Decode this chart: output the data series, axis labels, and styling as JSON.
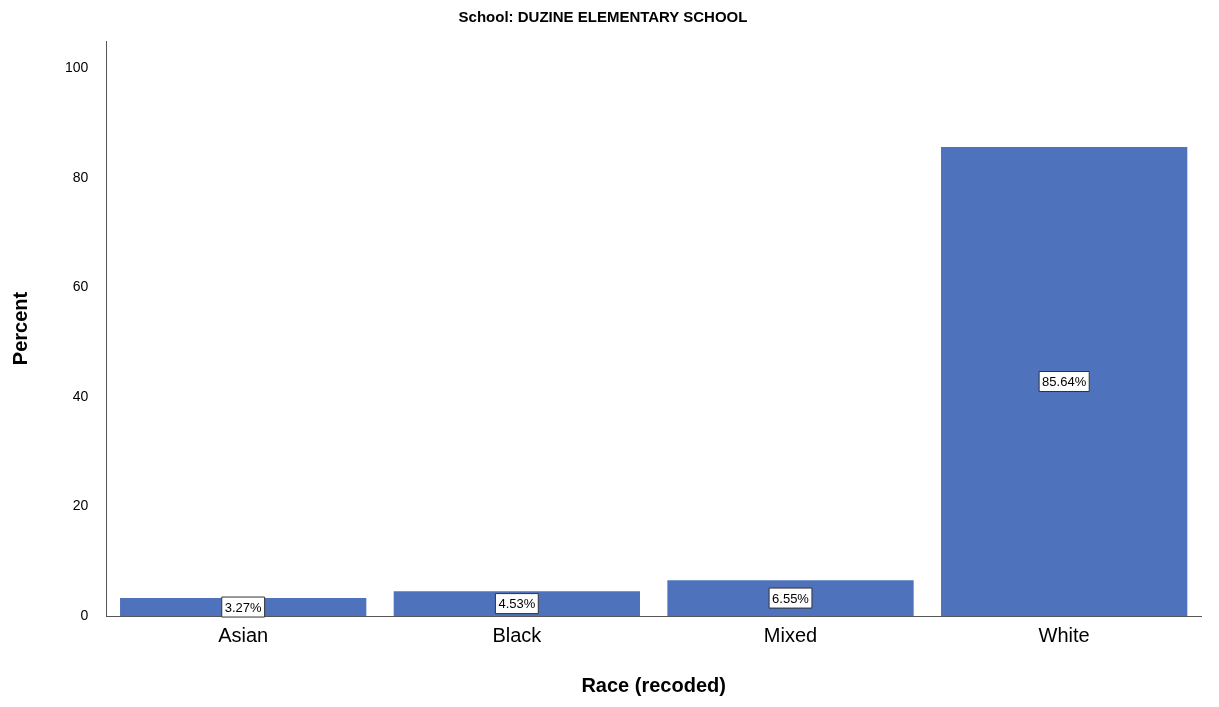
{
  "chart_data": {
    "type": "bar",
    "title": "School: DUZINE ELEMENTARY SCHOOL",
    "xlabel": "Race (recoded)",
    "ylabel": "Percent",
    "categories": [
      "Asian",
      "Black",
      "Mixed",
      "White"
    ],
    "values": [
      3.27,
      4.53,
      6.55,
      85.64
    ],
    "value_labels": [
      "3.27%",
      "4.53%",
      "6.55%",
      "85.64%"
    ],
    "color": "#4f72bd",
    "ylim": [
      0,
      105
    ],
    "yticks": [
      0,
      20,
      40,
      60,
      80,
      100
    ],
    "grid": false,
    "legend": false
  }
}
